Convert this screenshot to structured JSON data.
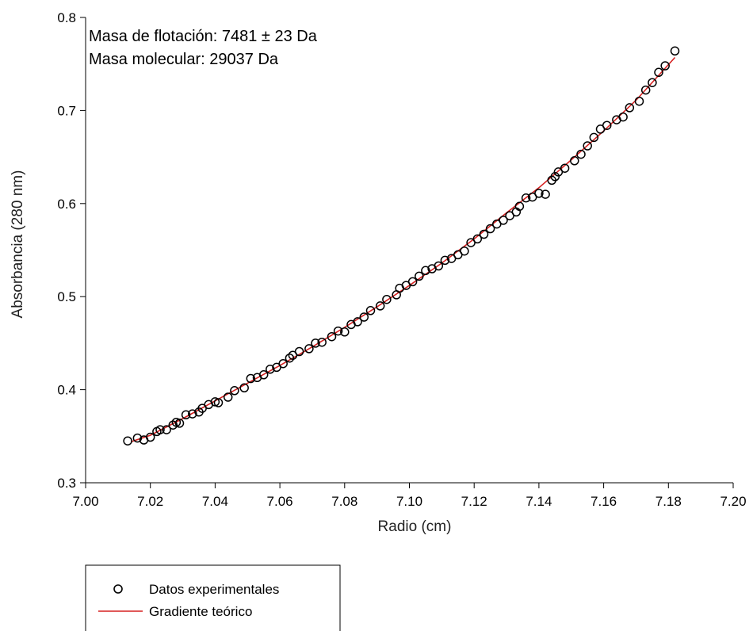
{
  "chart_data": {
    "type": "scatter",
    "xlabel": "Radio (cm)",
    "ylabel": "Absorbancia (280 nm)",
    "xlim": [
      7.0,
      7.2
    ],
    "ylim": [
      0.3,
      0.8
    ],
    "x_ticks": [
      "7.00",
      "7.02",
      "7.04",
      "7.06",
      "7.08",
      "7.10",
      "7.12",
      "7.14",
      "7.16",
      "7.18",
      "7.20"
    ],
    "y_ticks": [
      "0.3",
      "0.4",
      "0.5",
      "0.6",
      "0.7",
      "0.8"
    ],
    "grid": false,
    "annotations": [
      "Masa de flotación: 7481 ± 23 Da",
      "Masa molecular: 29037 Da"
    ],
    "legend": {
      "placement": "below-left",
      "entries": [
        {
          "label": "Datos experimentales",
          "marker": "circle-open"
        },
        {
          "label": "Gradiente teórico",
          "marker": "line"
        }
      ]
    },
    "series": [
      {
        "label": "Datos experimentales",
        "kind": "scatter",
        "color": "#000000",
        "points": [
          [
            7.013,
            0.345
          ],
          [
            7.016,
            0.348
          ],
          [
            7.018,
            0.346
          ],
          [
            7.02,
            0.349
          ],
          [
            7.022,
            0.355
          ],
          [
            7.023,
            0.357
          ],
          [
            7.025,
            0.357
          ],
          [
            7.027,
            0.362
          ],
          [
            7.028,
            0.365
          ],
          [
            7.029,
            0.364
          ],
          [
            7.031,
            0.373
          ],
          [
            7.033,
            0.374
          ],
          [
            7.035,
            0.376
          ],
          [
            7.036,
            0.38
          ],
          [
            7.038,
            0.384
          ],
          [
            7.04,
            0.387
          ],
          [
            7.041,
            0.386
          ],
          [
            7.044,
            0.392
          ],
          [
            7.046,
            0.399
          ],
          [
            7.049,
            0.402
          ],
          [
            7.051,
            0.412
          ],
          [
            7.053,
            0.413
          ],
          [
            7.055,
            0.416
          ],
          [
            7.057,
            0.422
          ],
          [
            7.059,
            0.424
          ],
          [
            7.061,
            0.428
          ],
          [
            7.063,
            0.434
          ],
          [
            7.064,
            0.437
          ],
          [
            7.066,
            0.441
          ],
          [
            7.069,
            0.444
          ],
          [
            7.071,
            0.45
          ],
          [
            7.073,
            0.451
          ],
          [
            7.076,
            0.457
          ],
          [
            7.078,
            0.463
          ],
          [
            7.08,
            0.462
          ],
          [
            7.082,
            0.47
          ],
          [
            7.084,
            0.473
          ],
          [
            7.086,
            0.478
          ],
          [
            7.088,
            0.485
          ],
          [
            7.091,
            0.49
          ],
          [
            7.093,
            0.497
          ],
          [
            7.096,
            0.502
          ],
          [
            7.097,
            0.509
          ],
          [
            7.099,
            0.512
          ],
          [
            7.101,
            0.516
          ],
          [
            7.103,
            0.522
          ],
          [
            7.105,
            0.528
          ],
          [
            7.107,
            0.53
          ],
          [
            7.109,
            0.533
          ],
          [
            7.111,
            0.539
          ],
          [
            7.113,
            0.541
          ],
          [
            7.115,
            0.545
          ],
          [
            7.117,
            0.549
          ],
          [
            7.119,
            0.558
          ],
          [
            7.121,
            0.562
          ],
          [
            7.123,
            0.567
          ],
          [
            7.125,
            0.573
          ],
          [
            7.127,
            0.578
          ],
          [
            7.129,
            0.582
          ],
          [
            7.131,
            0.587
          ],
          [
            7.133,
            0.591
          ],
          [
            7.134,
            0.597
          ],
          [
            7.136,
            0.606
          ],
          [
            7.138,
            0.607
          ],
          [
            7.14,
            0.611
          ],
          [
            7.142,
            0.61
          ],
          [
            7.144,
            0.625
          ],
          [
            7.145,
            0.629
          ],
          [
            7.146,
            0.634
          ],
          [
            7.148,
            0.638
          ],
          [
            7.151,
            0.646
          ],
          [
            7.153,
            0.653
          ],
          [
            7.155,
            0.662
          ],
          [
            7.157,
            0.671
          ],
          [
            7.159,
            0.68
          ],
          [
            7.161,
            0.684
          ],
          [
            7.164,
            0.69
          ],
          [
            7.166,
            0.693
          ],
          [
            7.168,
            0.703
          ],
          [
            7.171,
            0.71
          ],
          [
            7.173,
            0.722
          ],
          [
            7.175,
            0.73
          ],
          [
            7.177,
            0.741
          ],
          [
            7.179,
            0.748
          ],
          [
            7.182,
            0.764
          ]
        ]
      },
      {
        "label": "Gradiente teórico",
        "kind": "line",
        "color": "#d62020",
        "points": [
          [
            7.014,
            0.344
          ],
          [
            7.02,
            0.351
          ],
          [
            7.03,
            0.369
          ],
          [
            7.04,
            0.388
          ],
          [
            7.05,
            0.407
          ],
          [
            7.06,
            0.426
          ],
          [
            7.07,
            0.446
          ],
          [
            7.08,
            0.467
          ],
          [
            7.09,
            0.489
          ],
          [
            7.1,
            0.512
          ],
          [
            7.11,
            0.536
          ],
          [
            7.12,
            0.562
          ],
          [
            7.13,
            0.59
          ],
          [
            7.14,
            0.617
          ],
          [
            7.15,
            0.647
          ],
          [
            7.16,
            0.678
          ],
          [
            7.17,
            0.711
          ],
          [
            7.182,
            0.757
          ]
        ]
      }
    ]
  }
}
